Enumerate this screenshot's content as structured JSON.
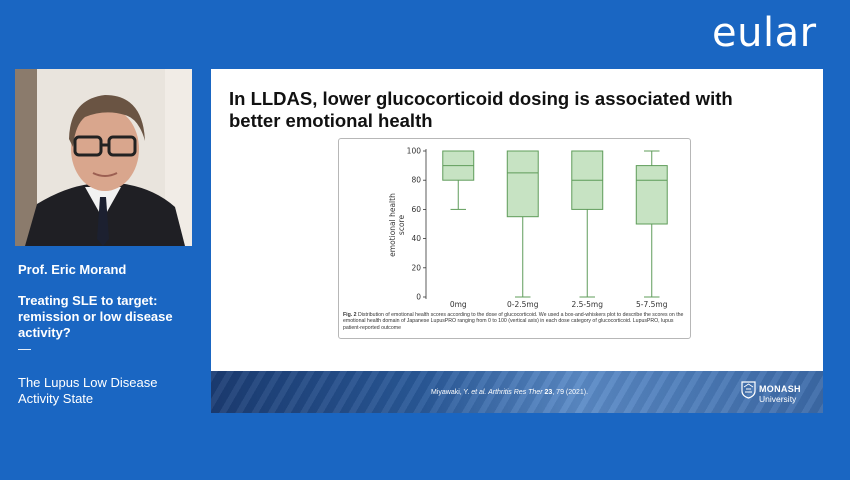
{
  "brand": {
    "logo_text": "eular"
  },
  "speaker": {
    "name": "Prof. Eric Morand",
    "talk_title": "Treating SLE to target: remission or low disease activity?",
    "separator": "—",
    "session": "The Lupus Low Disease Activity State"
  },
  "slide": {
    "title": "In LLDAS, lower glucocorticoid dosing is associated with better emotional health",
    "figure": {
      "caption_label": "Fig. 2",
      "caption_text": " Distribution of emotional health scores according to the dose of glucocorticoid. We used a box-and-whiskers plot to describe the scores on the emotional health domain of Japanese LupusPRO ranging from 0 to 100 (vertical axis) in each dose category of glucocorticoid. LupusPRO, lupus patient-reported outcome",
      "ylabel_line1": "emotional health",
      "ylabel_line2": "score"
    },
    "footer": {
      "citation_authors": "Miyawaki, Y. ",
      "citation_etal": "et al.",
      "citation_journal": " Arthritis Res Ther ",
      "citation_volume": "23",
      "citation_rest": ", 79 (2021).",
      "university_name": "MONASH",
      "university_sub": "University",
      "university_icon": "crest-icon"
    }
  },
  "colors": {
    "background": "#1a66c2",
    "box_fill": "#c7e3c3",
    "box_stroke": "#5f9c5a"
  },
  "chart_data": {
    "type": "box",
    "categories": [
      "0mg",
      "0-2.5mg",
      "2.5-5mg",
      "5-7.5mg"
    ],
    "series": [
      {
        "category": "0mg",
        "min": 60,
        "q1": 80,
        "median": 90,
        "q3": 100,
        "max": 100
      },
      {
        "category": "0-2.5mg",
        "min": 0,
        "q1": 55,
        "median": 85,
        "q3": 100,
        "max": 100
      },
      {
        "category": "2.5-5mg",
        "min": 0,
        "q1": 60,
        "median": 80,
        "q3": 100,
        "max": 100
      },
      {
        "category": "5-7.5mg",
        "min": 0,
        "q1": 50,
        "median": 80,
        "q3": 90,
        "max": 100
      }
    ],
    "yticks": [
      0,
      20,
      40,
      60,
      80,
      100
    ],
    "ylabel": "emotional health score",
    "ylim": [
      0,
      100
    ],
    "grid": false
  }
}
